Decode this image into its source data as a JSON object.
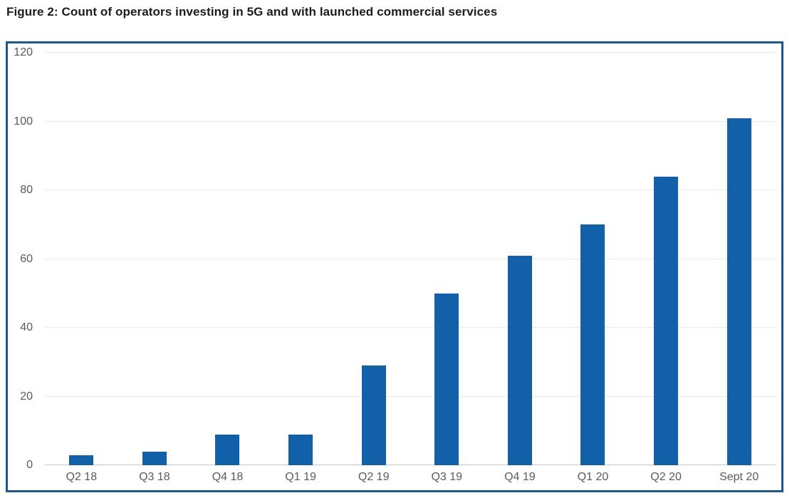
{
  "title": "Figure 2: Count of operators investing in 5G and with launched commercial services",
  "chart_data": {
    "type": "bar",
    "categories": [
      "Q2 18",
      "Q3 18",
      "Q4 18",
      "Q1 19",
      "Q2 19",
      "Q3 19",
      "Q4 19",
      "Q1 20",
      "Q2 20",
      "Sept 20"
    ],
    "values": [
      3,
      4,
      9,
      9,
      29,
      50,
      61,
      70,
      84,
      101
    ],
    "title": "Figure 2: Count of operators investing in 5G and with launched commercial services",
    "xlabel": "",
    "ylabel": "",
    "ylim": [
      0,
      120
    ],
    "yticks": [
      0,
      20,
      40,
      60,
      80,
      100,
      120
    ],
    "grid": true,
    "legend": false
  },
  "colors": {
    "bar": "#1160a8",
    "frame_border": "#1f5788",
    "gridline": "#e9e9e9",
    "baseline": "#c6c6c6",
    "tick_text": "#5a5a5a",
    "title_text": "#1c1c1e"
  }
}
